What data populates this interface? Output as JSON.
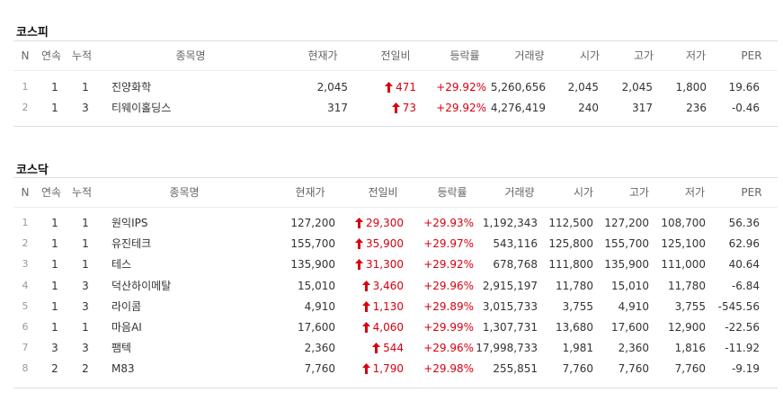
{
  "sections": [
    {
      "title": "코스피",
      "header": [
        "N",
        "연속",
        "누적",
        "종목명",
        "현재가",
        "전일비",
        "등락률",
        "거래량",
        "시가",
        "고가",
        "저가",
        "PER"
      ],
      "rows": [
        [
          "1",
          "1",
          "1",
          "진양화학",
          "2,045",
          "471",
          "+29.92%",
          "5,260,656",
          "2,045",
          "2,045",
          "1,800",
          "19.66"
        ],
        [
          "2",
          "1",
          "3",
          "티웨이홀딩스",
          "317",
          "73",
          "+29.92%",
          "4,276,419",
          "240",
          "317",
          "236",
          "-0.46"
        ]
      ]
    },
    {
      "title": "코스닥",
      "header": [
        "N",
        "연속",
        "누적",
        "종목명",
        "현재가",
        "전일비",
        "등락률",
        "거래량",
        "시가",
        "고가",
        "저가",
        "PER"
      ],
      "rows": [
        [
          "1",
          "1",
          "1",
          "원익IPS",
          "127,200",
          "29,300",
          "+29.93%",
          "1,192,343",
          "112,500",
          "127,200",
          "108,700",
          "56.36"
        ],
        [
          "2",
          "1",
          "1",
          "유진테크",
          "155,700",
          "35,900",
          "+29.97%",
          "543,116",
          "125,800",
          "155,700",
          "125,100",
          "62.96"
        ],
        [
          "3",
          "1",
          "1",
          "테스",
          "135,900",
          "31,300",
          "+29.92%",
          "678,768",
          "111,800",
          "135,900",
          "111,000",
          "40.64"
        ],
        [
          "4",
          "1",
          "3",
          "덕산하이메탈",
          "15,010",
          "3,460",
          "+29.96%",
          "2,915,197",
          "11,780",
          "15,010",
          "11,780",
          "-6.84"
        ],
        [
          "5",
          "1",
          "3",
          "라이콤",
          "4,910",
          "1,130",
          "+29.89%",
          "3,015,733",
          "3,755",
          "4,910",
          "3,755",
          "-545.56"
        ],
        [
          "6",
          "1",
          "1",
          "마음AI",
          "17,600",
          "4,060",
          "+29.99%",
          "1,307,731",
          "13,680",
          "17,600",
          "12,900",
          "-22.56"
        ],
        [
          "7",
          "3",
          "3",
          "팸텍",
          "2,360",
          "544",
          "+29.96%",
          "17,998,733",
          "1,981",
          "2,360",
          "1,816",
          "-11.92"
        ],
        [
          "8",
          "2",
          "2",
          "M83",
          "7,760",
          "1,790",
          "+29.98%",
          "255,851",
          "7,760",
          "7,760",
          "7,760",
          "-9.19"
        ]
      ]
    }
  ]
}
